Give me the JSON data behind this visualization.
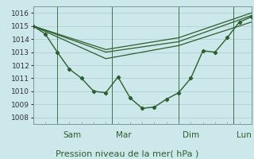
{
  "background_color": "#cce8ea",
  "grid_color": "#aacccc",
  "line_color": "#2d5e2d",
  "xlabel": "Pression niveau de la mer( hPa )",
  "ylim": [
    1007.5,
    1016.5
  ],
  "yticks": [
    1008,
    1009,
    1010,
    1011,
    1012,
    1013,
    1014,
    1015,
    1016
  ],
  "day_labels": [
    "Sam",
    "Mar",
    "Dim",
    "Lun"
  ],
  "series_main": {
    "x": [
      0,
      1,
      2,
      3,
      4,
      5,
      6,
      7,
      8,
      9,
      10,
      11,
      12,
      13,
      14,
      15,
      16,
      17,
      18
    ],
    "y": [
      1015.0,
      1014.4,
      1013.0,
      1011.7,
      1011.0,
      1010.0,
      1009.9,
      1011.1,
      1009.5,
      1008.7,
      1008.8,
      1009.4,
      1009.9,
      1011.0,
      1013.1,
      1013.0,
      1014.1,
      1015.3,
      1015.7
    ],
    "marker": "D",
    "markersize": 2.2,
    "linewidth": 1.0
  },
  "series_smooth": [
    {
      "x": [
        0,
        6,
        12,
        18
      ],
      "y": [
        1015.0,
        1013.0,
        1013.8,
        1015.8
      ]
    },
    {
      "x": [
        0,
        6,
        12,
        18
      ],
      "y": [
        1015.0,
        1013.2,
        1014.1,
        1016.0
      ]
    },
    {
      "x": [
        0,
        6,
        12,
        18
      ],
      "y": [
        1015.0,
        1012.5,
        1013.5,
        1015.3
      ]
    }
  ],
  "smooth_linewidth": 0.9,
  "xlabel_fontsize": 8,
  "ytick_fontsize": 6.5,
  "xtick_fontsize": 7.5
}
